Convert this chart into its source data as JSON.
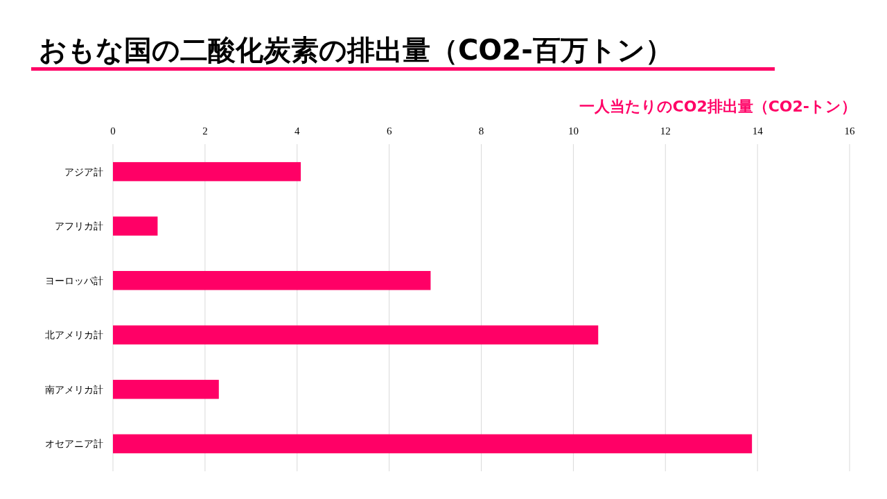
{
  "chart_data": {
    "type": "bar",
    "orientation": "horizontal",
    "title": "おもな国の二酸化炭素の排出量（CO2-百万トン）",
    "xlabel": "一人当たりのCO2排出量（CO2-トン）",
    "categories": [
      "アジア計",
      "アフリカ計",
      "ヨーロッパ計",
      "北アメリカ計",
      "南アメリカ計",
      "オセアニア計"
    ],
    "values": [
      4.08,
      0.97,
      6.9,
      10.54,
      2.3,
      13.88
    ],
    "color": "#ff0066",
    "xlim": [
      0,
      16
    ],
    "xticks": [
      0,
      2,
      4,
      6,
      8,
      10,
      12,
      14,
      16
    ],
    "grid": "x"
  }
}
